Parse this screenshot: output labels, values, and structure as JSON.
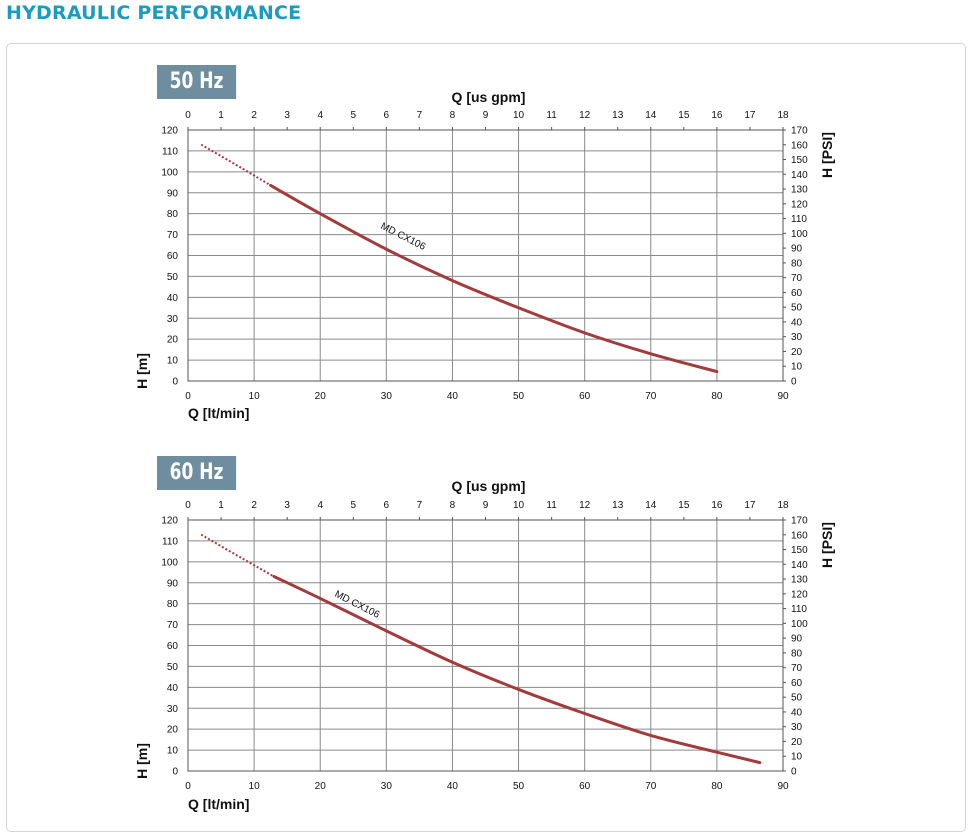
{
  "page": {
    "title": "HYDRAULIC PERFORMANCE",
    "title_color": "#1c9bc0",
    "badge_color": "#6e8ea0",
    "curve_color": "#a23b3b"
  },
  "chart_data": [
    {
      "type": "line",
      "title": "50 Hz",
      "xlabel": "Q [lt/min]",
      "ylabel": "H [m]",
      "x2label": "Q [us gpm]",
      "y2label": "H [PSI]",
      "xlim": [
        0,
        90
      ],
      "ylim": [
        0,
        120
      ],
      "x2lim": [
        0,
        18
      ],
      "y2lim": [
        0,
        170
      ],
      "xticks": [
        0,
        10,
        20,
        30,
        40,
        50,
        60,
        70,
        80,
        90
      ],
      "yticks": [
        0,
        10,
        20,
        30,
        40,
        50,
        60,
        70,
        80,
        90,
        100,
        110,
        120
      ],
      "x2ticks": [
        0,
        1,
        2,
        3,
        4,
        5,
        6,
        7,
        8,
        9,
        10,
        11,
        12,
        13,
        14,
        15,
        16,
        17,
        18
      ],
      "y2ticks": [
        0,
        10,
        20,
        30,
        40,
        50,
        60,
        70,
        80,
        90,
        100,
        110,
        120,
        130,
        140,
        150,
        160,
        170
      ],
      "grid": true,
      "series": [
        {
          "name": "MD CX106",
          "dotted_until_x": 12.5,
          "x": [
            2,
            8,
            12.5,
            20,
            30,
            40,
            50,
            60,
            70,
            80
          ],
          "y": [
            113,
            102,
            93.5,
            80,
            63,
            48,
            35,
            23,
            13,
            4.5
          ]
        }
      ]
    },
    {
      "type": "line",
      "title": "60 Hz",
      "xlabel": "Q [lt/min]",
      "ylabel": "H [m]",
      "x2label": "Q [us gpm]",
      "y2label": "H [PSI]",
      "xlim": [
        0,
        90
      ],
      "ylim": [
        0,
        120
      ],
      "x2lim": [
        0,
        18
      ],
      "y2lim": [
        0,
        170
      ],
      "xticks": [
        0,
        10,
        20,
        30,
        40,
        50,
        60,
        70,
        80,
        90
      ],
      "yticks": [
        0,
        10,
        20,
        30,
        40,
        50,
        60,
        70,
        80,
        90,
        100,
        110,
        120
      ],
      "x2ticks": [
        0,
        1,
        2,
        3,
        4,
        5,
        6,
        7,
        8,
        9,
        10,
        11,
        12,
        13,
        14,
        15,
        16,
        17,
        18
      ],
      "y2ticks": [
        0,
        10,
        20,
        30,
        40,
        50,
        60,
        70,
        80,
        90,
        100,
        110,
        120,
        130,
        140,
        150,
        160,
        170
      ],
      "grid": true,
      "series": [
        {
          "name": "MD CX106",
          "dotted_until_x": 13,
          "x": [
            2,
            8,
            13,
            20,
            30,
            40,
            50,
            60,
            70,
            80,
            86.5
          ],
          "y": [
            113,
            102,
            93,
            82.5,
            67,
            52,
            39,
            27.5,
            17,
            9,
            4
          ]
        }
      ]
    }
  ]
}
